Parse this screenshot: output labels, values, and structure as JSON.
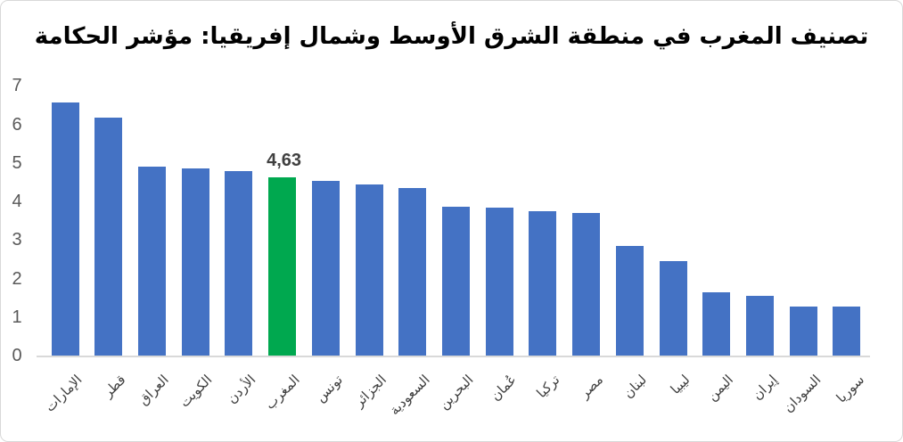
{
  "chart_data": {
    "type": "bar",
    "title": "تصنيف المغرب في منطقة الشرق الأوسط وشمال إفريقيا: مؤشر الحكامة",
    "xlabel": "",
    "ylabel": "",
    "categories": [
      "الإمارات",
      "قطر",
      "العراق",
      "الكويت",
      "الأردن",
      "المغرب",
      "تونس",
      "الجزائر",
      "السعودية",
      "البحرين",
      "عُمان",
      "تركيا",
      "مصر",
      "لبنان",
      "ليبيا",
      "اليمن",
      "إيران",
      "السودان",
      "سوريا"
    ],
    "values": [
      6.57,
      6.18,
      4.91,
      4.85,
      4.79,
      4.63,
      4.53,
      4.45,
      4.35,
      3.86,
      3.83,
      3.75,
      3.69,
      2.84,
      2.44,
      1.65,
      1.56,
      1.28,
      1.28
    ],
    "highlight_index": 5,
    "highlight_category": "المغرب",
    "data_labels": [
      {
        "index": 5,
        "text": "4,63"
      }
    ],
    "ylim": [
      0,
      7
    ],
    "yticks": [
      0,
      1,
      2,
      3,
      4,
      5,
      6,
      7
    ],
    "grid": false,
    "legend": false,
    "colors": {
      "bar_default": "#4472C4",
      "bar_highlight": "#00A84F",
      "axis_line": "#D9D9D9",
      "tick_text": "#595959",
      "category_text": "#404040",
      "data_label_text": "#404040",
      "title_text": "#000000",
      "border": "#D8D8D8"
    }
  }
}
